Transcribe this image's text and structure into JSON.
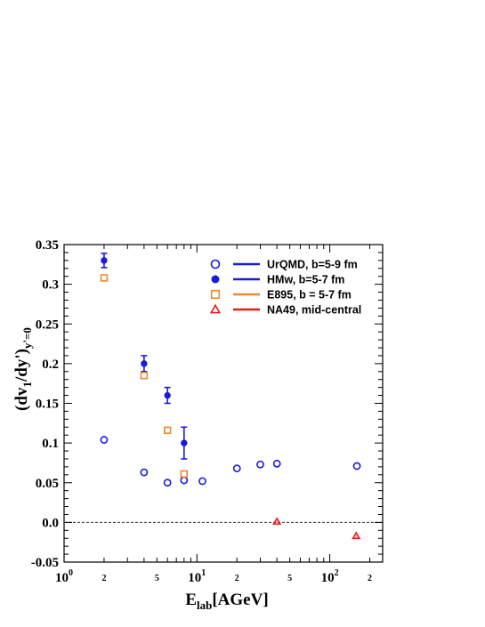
{
  "chart_data": {
    "type": "scatter",
    "x_scale": "log",
    "xlim": [
      1,
      250
    ],
    "ylim": [
      -0.05,
      0.35
    ],
    "x_ticks_major": [
      {
        "base": "10",
        "exp": "0",
        "value": 1
      },
      {
        "base": "10",
        "exp": "1",
        "value": 10
      },
      {
        "base": "10",
        "exp": "2",
        "value": 100
      }
    ],
    "x_ticks_minor_labeled": [
      {
        "label": "2",
        "value": 2
      },
      {
        "label": "5",
        "value": 5
      },
      {
        "label": "2",
        "value": 20
      },
      {
        "label": "5",
        "value": 50
      },
      {
        "label": "2",
        "value": 200
      }
    ],
    "y_ticks": [
      {
        "label": "0.35",
        "value": 0.35
      },
      {
        "label": "0.3",
        "value": 0.3
      },
      {
        "label": "0.25",
        "value": 0.25
      },
      {
        "label": "0.2",
        "value": 0.2
      },
      {
        "label": "0.15",
        "value": 0.15
      },
      {
        "label": "0.1",
        "value": 0.1
      },
      {
        "label": "0.05",
        "value": 0.05
      },
      {
        "label": "0.0",
        "value": 0.0
      },
      {
        "label": "-0.05",
        "value": -0.05
      }
    ],
    "xlabel": {
      "main": "E",
      "sub": "lab",
      "rest": "[AGeV]"
    },
    "ylabel": {
      "pre": "(dv",
      "sub1": "1",
      "mid": "/dy')",
      "sub2": "y'=0"
    },
    "zero_line": 0,
    "legend_position": "top-right",
    "series": [
      {
        "name": "UrQMD, b=5-9 fm",
        "marker": "open-circle",
        "color": "#1a1adc",
        "line_color": "#1a1adc",
        "points": [
          [
            2,
            0.104
          ],
          [
            4,
            0.063
          ],
          [
            6,
            0.05
          ],
          [
            8,
            0.053
          ],
          [
            11,
            0.052
          ],
          [
            20,
            0.068
          ],
          [
            30,
            0.073
          ],
          [
            40,
            0.074
          ],
          [
            160,
            0.071
          ]
        ]
      },
      {
        "name": "HMw, b=5-7 fm",
        "marker": "filled-circle",
        "color": "#1a1adc",
        "line_color": "#1a1adc",
        "points": [
          [
            2,
            0.33,
            0.009
          ],
          [
            4,
            0.2,
            0.01
          ],
          [
            6,
            0.16,
            0.01
          ],
          [
            8,
            0.1,
            0.02
          ]
        ]
      },
      {
        "name": "E895, b = 5-7 fm",
        "marker": "open-square",
        "color": "#f0882a",
        "line_color": "#f0882a",
        "points": [
          [
            2,
            0.308
          ],
          [
            4,
            0.185
          ],
          [
            6,
            0.116
          ],
          [
            8,
            0.061
          ]
        ]
      },
      {
        "name": "NA49, mid-central",
        "marker": "open-triangle",
        "color": "#e01c1c",
        "line_color": "#e01c1c",
        "points": [
          [
            40,
            0.001
          ],
          [
            158,
            -0.017
          ]
        ]
      }
    ]
  }
}
